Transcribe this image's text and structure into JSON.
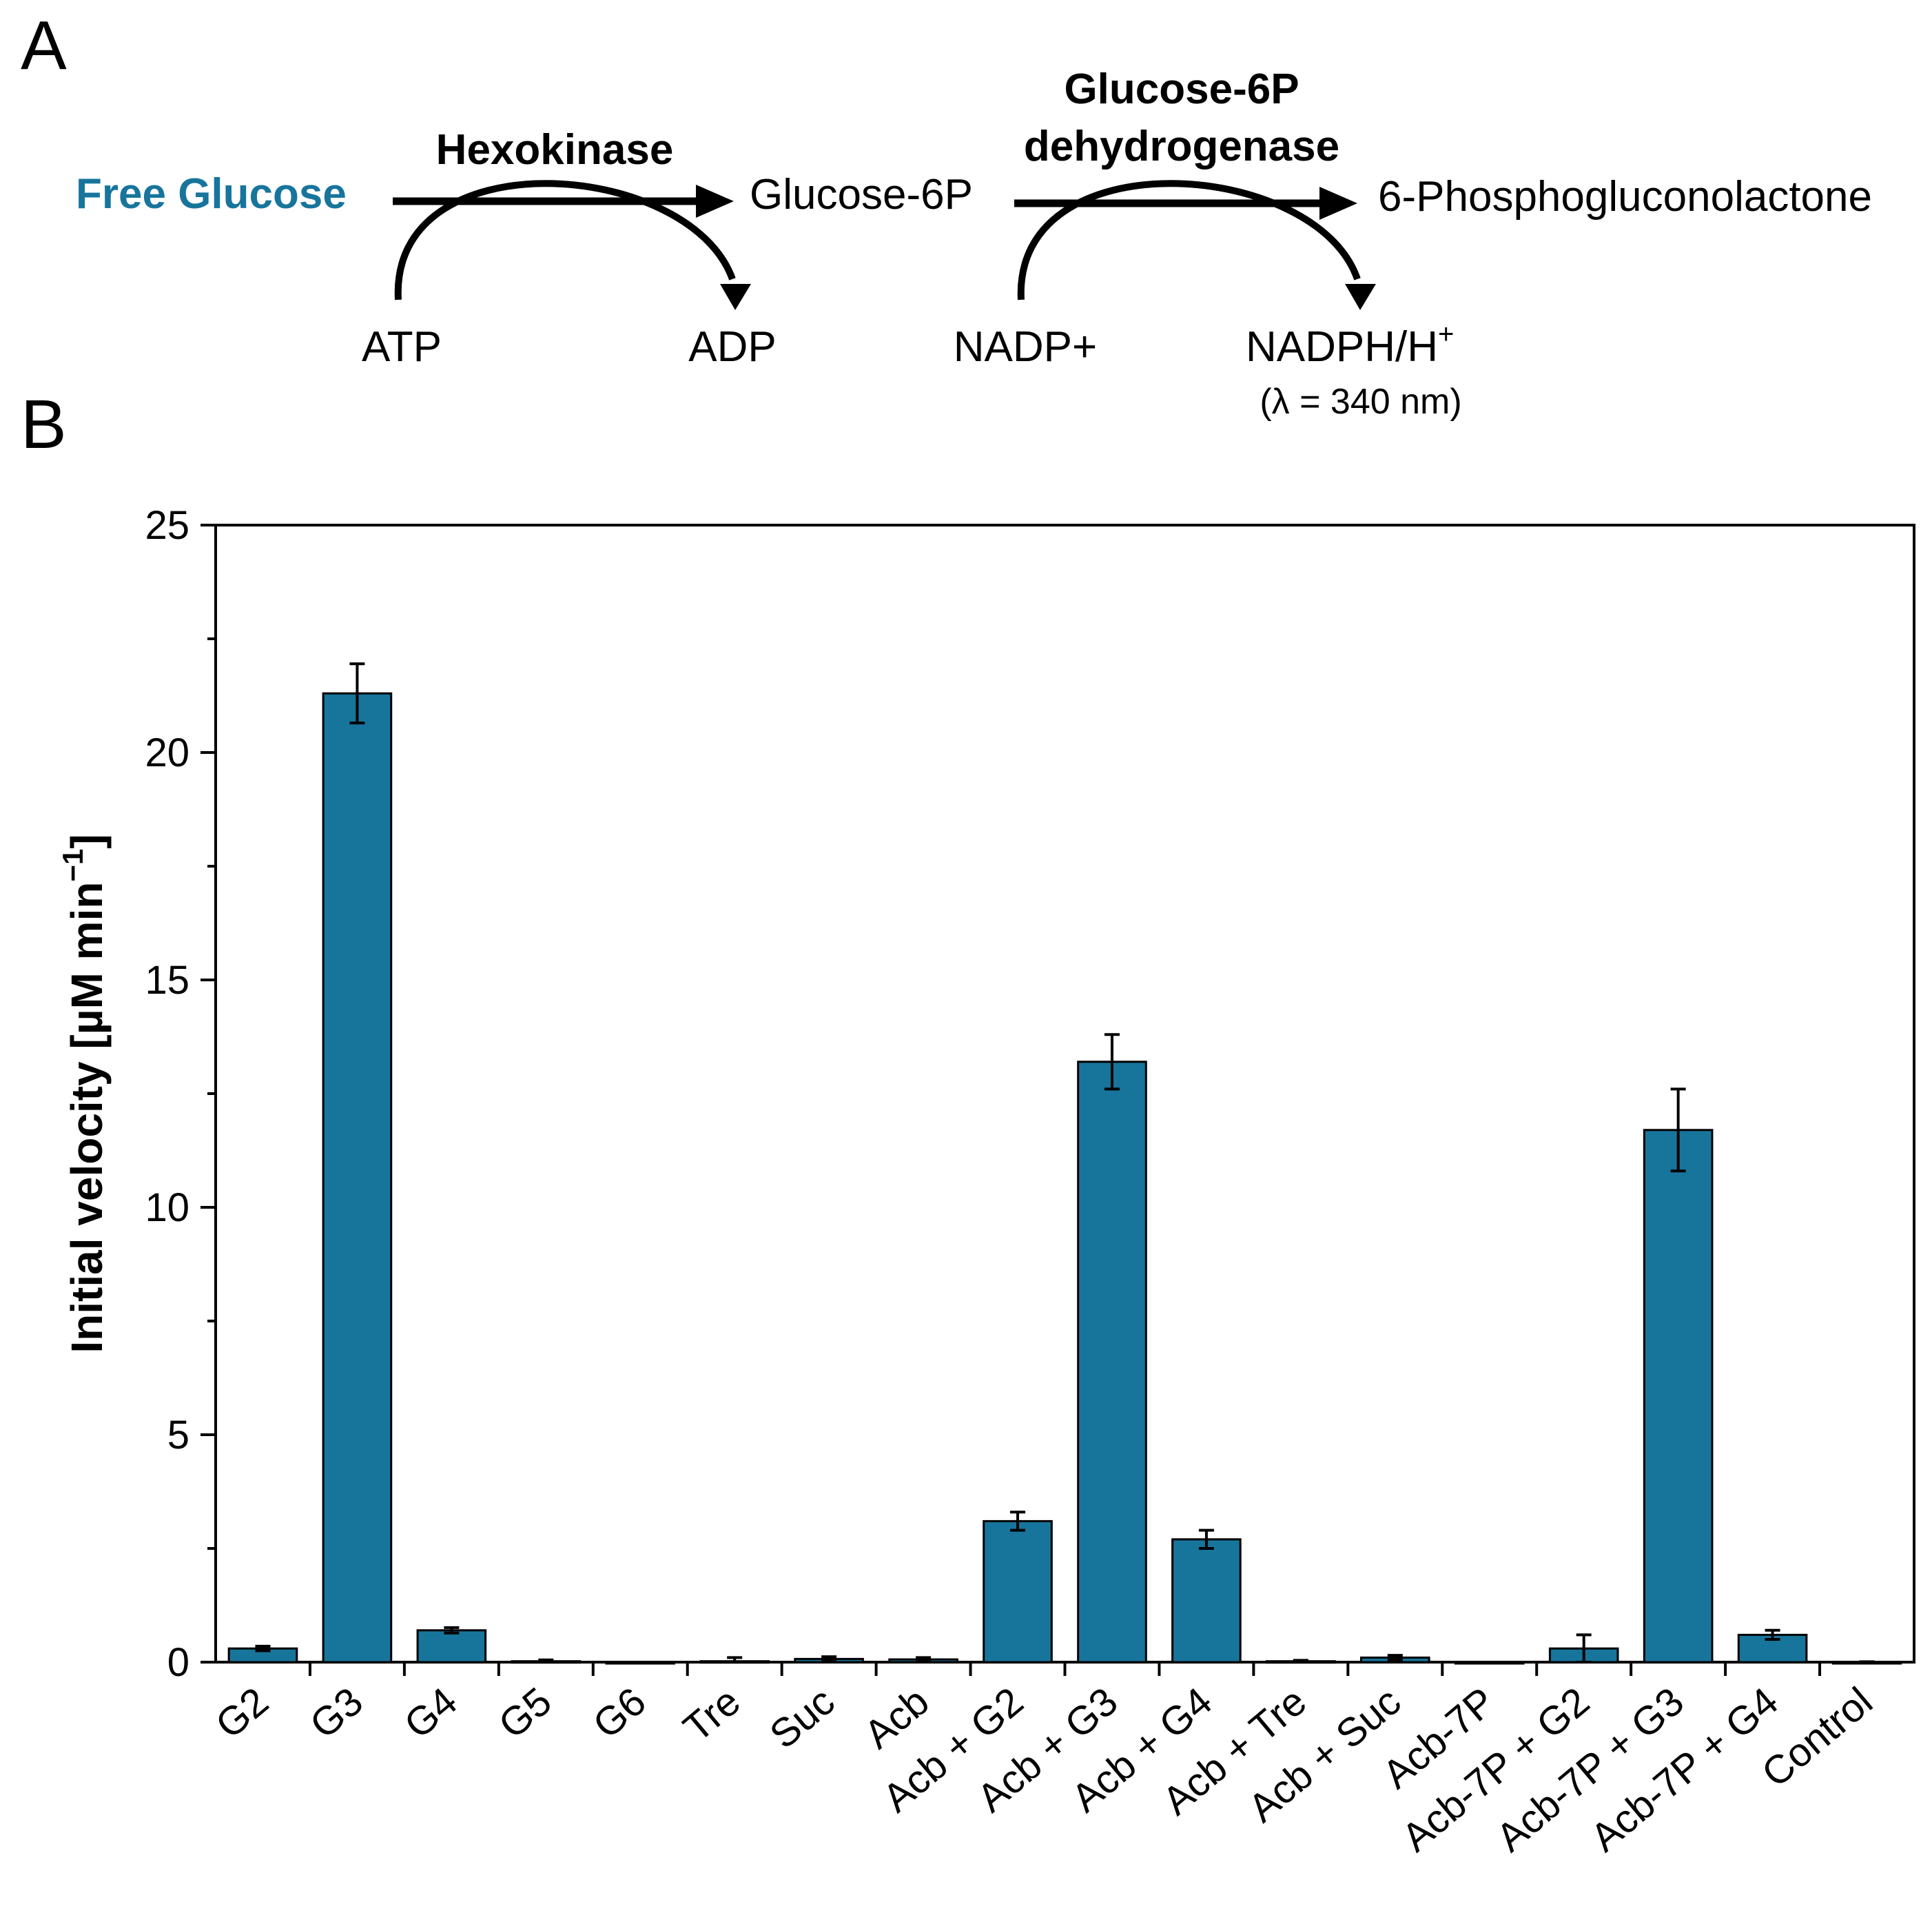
{
  "panel_a": {
    "label": "A",
    "substrate": "Free Glucose",
    "enzyme1": "Hexokinase",
    "intermediate": "Glucose-6P",
    "enzyme2_line1": "Glucose-6P",
    "enzyme2_line2": "dehydrogenase",
    "product": "6-Phosphogluconolactone",
    "cofactor1_in": "ATP",
    "cofactor1_out": "ADP",
    "cofactor2_in": "NADP+",
    "cofactor2_out": "NADPH/H",
    "cofactor2_out_sup": "+",
    "wavelength": "(λ = 340 nm)",
    "colors": {
      "substrate": "#17759c"
    }
  },
  "panel_b": {
    "label": "B"
  },
  "chart_data": {
    "type": "bar",
    "title": "",
    "xlabel": "",
    "ylabel": "Initial velocity [µM min",
    "ylabel_sup": "−1",
    "ylabel_close": "]",
    "ylim": [
      0,
      25
    ],
    "yticks": [
      0,
      5,
      10,
      15,
      20,
      25
    ],
    "ytick_labels": [
      "0",
      "5",
      "10",
      "15",
      "20",
      "25"
    ],
    "y_minor_step": 2.5,
    "grid": false,
    "legend": "none",
    "bar_color": "#17759c",
    "categories": [
      "G2",
      "G3",
      "G4",
      "G5",
      "G6",
      "Tre",
      "Suc",
      "Acb",
      "Acb + G2",
      "Acb + G3",
      "Acb + G4",
      "Acb + Tre",
      "Acb + Suc",
      "Acb-7P",
      "Acb-7P + G2",
      "Acb-7P + G3",
      "Acb-7P + G4",
      "Control"
    ],
    "values": [
      0.3,
      21.3,
      0.7,
      0.02,
      0.0,
      0.02,
      0.07,
      0.06,
      3.1,
      13.2,
      2.7,
      0.02,
      0.1,
      0.0,
      0.3,
      11.7,
      0.6,
      0.0
    ],
    "errors": [
      0.05,
      0.65,
      0.06,
      0.03,
      0.0,
      0.08,
      0.05,
      0.04,
      0.2,
      0.6,
      0.2,
      0.02,
      0.05,
      0.0,
      0.3,
      0.9,
      0.1,
      0.01
    ]
  }
}
